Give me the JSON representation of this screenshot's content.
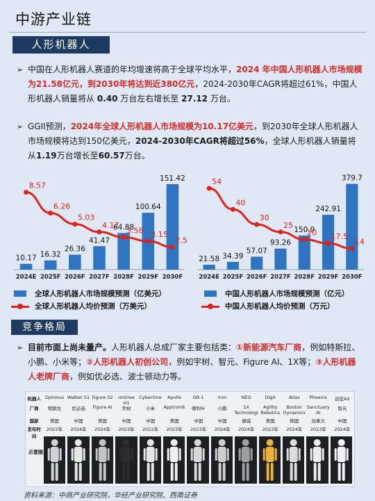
{
  "page": {
    "title": "中游产业链",
    "section1": "人形机器人",
    "section2": "竞争格局",
    "source": "资料来源：中商产业研究院，华经产业研究院、西南证券"
  },
  "bullets": {
    "b1": {
      "p1": "中国在人形机器人赛道的年均增速将高于全球平均水平，",
      "p2": "2024 年中国人形机器人市场规模为21.58亿元，到2030年将达到近380亿元",
      "p3": "，2024-2030年CAGR将超过61%，中国人形机器人销量将从 ",
      "p4": "0.40",
      "p5": " 万台左右增长至 ",
      "p6": "27.12",
      "p7": " 万台。"
    },
    "b2": {
      "p1": "GGII预测，",
      "p2": "2024年全球人形机器人市场规模为10.17亿美元",
      "p3": "，到2030年全球人形机器人市场规模将达到150亿美元，",
      "p4": "2024-2030年CAGR将超过56%",
      "p5": "，全球人形机器人销量将从",
      "p6": "1.19",
      "p7": "万台增长至",
      "p8": "60.57",
      "p9": "万台。"
    },
    "b3": {
      "p1": "目前市面上尚未量产。",
      "p2": "人形机器人总成厂家主要包括类：",
      "p3": "①新能源汽车厂商",
      "p4": "，例如特斯拉、小鹏、小米等；",
      "p5": "②人形机器人初创公司",
      "p6": "，例如宇树、智元、Figure AI、1X等；",
      "p7": "③人形机器人老牌厂商",
      "p8": "，例如优必选、波士顿动力等。"
    }
  },
  "chart_data": [
    {
      "type": "bar",
      "categories": [
        "2024E",
        "2025F",
        "2026F",
        "2027F",
        "2028F",
        "2029F",
        "2030F"
      ],
      "series": [
        {
          "name": "全球人形机器人市场规模预测（亿美元）",
          "values": [
            10.17,
            16.32,
            26.36,
            41.47,
            64.88,
            100.64,
            151.42
          ],
          "labels": [
            "10.17",
            "16.32",
            "26.36",
            "41.47",
            "64.88",
            "100.64",
            "151.42"
          ],
          "color": "#2f74c0"
        },
        {
          "name": "全球人形机器人均价预测（万美元）",
          "type": "line",
          "values": [
            8.57,
            6.26,
            5.03,
            4.17,
            3.58,
            3.15,
            2.5
          ],
          "labels": [
            "8.57",
            "6.26",
            "5.03",
            "4.17",
            "3.58",
            "3.15",
            "2.5"
          ],
          "color": "#e0211b"
        }
      ],
      "ylim_bar": [
        0,
        160
      ],
      "ylim_line": [
        0,
        10
      ]
    },
    {
      "type": "bar",
      "categories": [
        "2024E",
        "2025F",
        "2026F",
        "2027F",
        "2028F",
        "2029F",
        "2030F"
      ],
      "series": [
        {
          "name": "中国人形机器人市场规模预测（亿元）",
          "values": [
            21.58,
            34.39,
            57.07,
            93.26,
            150.9,
            242.91,
            379.7
          ],
          "labels": [
            "21.58",
            "34.39",
            "57.07",
            "93.26",
            "150.9",
            "242.91",
            "379.7"
          ],
          "color": "#2f74c0"
        },
        {
          "name": "中国人形机器人均价预测（万元）",
          "type": "line",
          "values": [
            54,
            40,
            30,
            25,
            20,
            17.5,
            14
          ],
          "labels": [
            "54",
            "40",
            "30",
            "25",
            "20",
            "17.5",
            "14"
          ],
          "color": "#e0211b"
        }
      ],
      "ylim_bar": [
        0,
        400
      ],
      "ylim_line": [
        0,
        60
      ]
    }
  ],
  "table": {
    "rows": [
      {
        "head": "机器人",
        "cells": [
          "Optimus",
          "Walker S1",
          "Figure 02",
          "Unitree H1",
          "CyberOne",
          "Apollo",
          "GR-1",
          "Iron",
          "NEO",
          "Digit",
          "Atlas",
          "Phoenix",
          "远征A2"
        ]
      },
      {
        "head": "厂商",
        "cells": [
          "特斯拉",
          "优必选",
          "Figure AI",
          "宇树",
          "小米",
          "Apptronik",
          "傅利叶",
          "小鹏",
          "1X Technologies",
          "Agility Robotics",
          "Boston Dynamics",
          "Sanctuary AI",
          "智元"
        ]
      },
      {
        "head": "国家",
        "cells": [
          "美国",
          "中国",
          "美国",
          "中国",
          "中国",
          "美国",
          "中国",
          "中国",
          "挪威",
          "美国",
          "韩国",
          "加拿大",
          "中国"
        ]
      },
      {
        "head": "发布时间",
        "cells": [
          "2022年",
          "2024年",
          "2024年",
          "2023年",
          "2022年",
          "2023年",
          "2023年",
          "2024年",
          "2024年",
          "2023年",
          "2024年",
          "2023年",
          "2024年"
        ]
      }
    ],
    "image_label": "示意图"
  }
}
